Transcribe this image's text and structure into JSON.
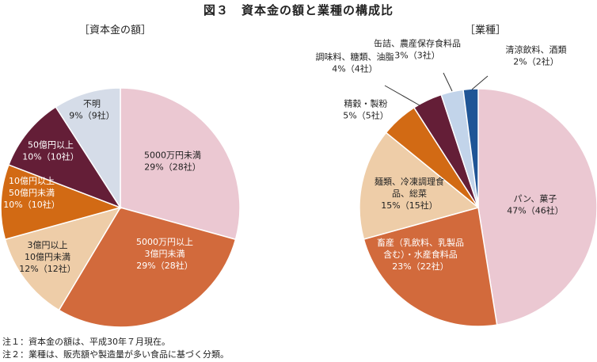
{
  "figure_title": "図３　資本金の額と業種の構成比",
  "notes": [
    "注１：資本金の額は、平成30年７月現在。",
    "注２：業種は、販売額や製造量が多い食品に基づく分類。"
  ],
  "chart_data": [
    {
      "type": "pie",
      "title": "［資本金の額］",
      "unit": "%",
      "slices": [
        {
          "label_lines": [
            "5000万円未満",
            "29%（28社）"
          ],
          "value": 29,
          "count": 28,
          "color": "#ebc8d2"
        },
        {
          "label_lines": [
            "5000万円以上",
            "3億円未満",
            "29%（28社）"
          ],
          "value": 29,
          "count": 28,
          "color": "#d26a3c"
        },
        {
          "label_lines": [
            "3億円以上",
            "10億円未満",
            "12%（12社）"
          ],
          "value": 12,
          "count": 12,
          "color": "#eecda8"
        },
        {
          "label_lines": [
            "10億円以上",
            "50億円未満",
            "10%（10社）"
          ],
          "value": 10,
          "count": 10,
          "color": "#d26a14"
        },
        {
          "label_lines": [
            "50億円以上",
            "10%（10社）"
          ],
          "value": 10,
          "count": 10,
          "color": "#641e37"
        },
        {
          "label_lines": [
            "不明",
            "9%（9社）"
          ],
          "value": 9,
          "count": 9,
          "color": "#d5dce8"
        }
      ]
    },
    {
      "type": "pie",
      "title": "［業種］",
      "unit": "%",
      "slices": [
        {
          "label_lines": [
            "パン、菓子",
            "47%（46社）"
          ],
          "value": 47,
          "count": 46,
          "color": "#ebc8d2"
        },
        {
          "label_lines": [
            "畜産（乳飲料、乳製品",
            "含む）・水産食料品",
            "23%（22社）"
          ],
          "value": 23,
          "count": 22,
          "color": "#d26a3c"
        },
        {
          "label_lines": [
            "麺類、冷凍調理食",
            "品、総菜",
            "15%（15社）"
          ],
          "value": 15,
          "count": 15,
          "color": "#eecda8"
        },
        {
          "label_lines": [
            "精穀・製粉",
            "5%（5社）"
          ],
          "value": 5,
          "count": 5,
          "color": "#d26a14"
        },
        {
          "label_lines": [
            "調味料、糖類、油脂",
            "4%（4社）"
          ],
          "value": 4,
          "count": 4,
          "color": "#641e37"
        },
        {
          "label_lines": [
            "缶詰、農産保存食料品",
            "3%（3社）"
          ],
          "value": 3,
          "count": 3,
          "color": "#c2d4ea"
        },
        {
          "label_lines": [
            "清涼飲料、酒類",
            "2%（2社）"
          ],
          "value": 2,
          "count": 2,
          "color": "#1f5596"
        }
      ]
    }
  ]
}
